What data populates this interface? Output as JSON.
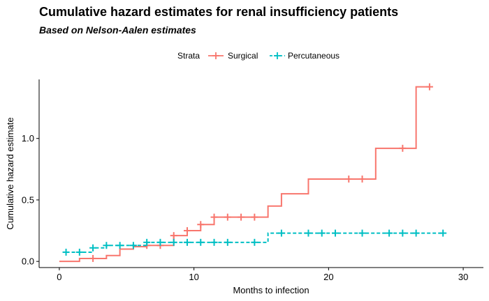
{
  "chart_data": {
    "type": "line",
    "step": true,
    "title": "Cumulative hazard estimates for renal insufficiency patients",
    "subtitle": "Based on Nelson-Aalen estimates",
    "xlabel": "Months to infection",
    "ylabel": "Cumulative hazard estimate",
    "xlim": [
      -1.5,
      31.5
    ],
    "ylim": [
      -0.05,
      1.48
    ],
    "xticks": [
      0,
      10,
      20,
      30
    ],
    "yticks": [
      0.0,
      0.5,
      1.0
    ],
    "ytick_labels": [
      "0.0",
      "0.5",
      "1.0"
    ],
    "grid": false,
    "legend": {
      "title": "Strata",
      "position": "top"
    },
    "series": [
      {
        "name": "Surgical",
        "color": "#F8766D",
        "line_style": "solid",
        "steps": [
          [
            0,
            0.0
          ],
          [
            1.5,
            0.024
          ],
          [
            3.5,
            0.048
          ],
          [
            4.5,
            0.1
          ],
          [
            5.5,
            0.12
          ],
          [
            6.5,
            0.13
          ],
          [
            8.5,
            0.21
          ],
          [
            9.5,
            0.25
          ],
          [
            10.5,
            0.3
          ],
          [
            11.5,
            0.36
          ],
          [
            15.5,
            0.45
          ],
          [
            16.5,
            0.55
          ],
          [
            18.5,
            0.67
          ],
          [
            23.5,
            0.92
          ],
          [
            26.5,
            1.42
          ],
          [
            27.5,
            1.42
          ]
        ],
        "censored": [
          [
            2.5,
            0.024
          ],
          [
            6.5,
            0.13
          ],
          [
            7.5,
            0.13
          ],
          [
            8.5,
            0.21
          ],
          [
            9.5,
            0.25
          ],
          [
            10.5,
            0.3
          ],
          [
            11.5,
            0.36
          ],
          [
            12.5,
            0.36
          ],
          [
            13.5,
            0.36
          ],
          [
            14.5,
            0.36
          ],
          [
            21.5,
            0.67
          ],
          [
            22.5,
            0.67
          ],
          [
            25.5,
            0.92
          ],
          [
            27.5,
            1.42
          ]
        ]
      },
      {
        "name": "Percutaneous",
        "color": "#00BFC4",
        "line_style": "dashed",
        "steps": [
          [
            0.5,
            0.075
          ],
          [
            2.5,
            0.11
          ],
          [
            3.5,
            0.13
          ],
          [
            6.5,
            0.155
          ],
          [
            15.5,
            0.23
          ],
          [
            28.5,
            0.23
          ]
        ],
        "censored": [
          [
            0.5,
            0.075
          ],
          [
            1.5,
            0.075
          ],
          [
            2.5,
            0.11
          ],
          [
            3.5,
            0.13
          ],
          [
            4.5,
            0.13
          ],
          [
            5.5,
            0.13
          ],
          [
            6.5,
            0.155
          ],
          [
            7.5,
            0.155
          ],
          [
            8.5,
            0.155
          ],
          [
            9.5,
            0.155
          ],
          [
            10.5,
            0.155
          ],
          [
            11.5,
            0.155
          ],
          [
            12.5,
            0.155
          ],
          [
            14.5,
            0.155
          ],
          [
            16.5,
            0.23
          ],
          [
            18.5,
            0.23
          ],
          [
            19.5,
            0.23
          ],
          [
            20.5,
            0.23
          ],
          [
            22.5,
            0.23
          ],
          [
            24.5,
            0.23
          ],
          [
            25.5,
            0.23
          ],
          [
            26.5,
            0.23
          ],
          [
            28.5,
            0.23
          ]
        ]
      }
    ]
  }
}
